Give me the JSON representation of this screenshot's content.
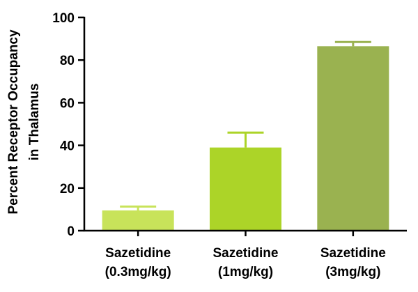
{
  "chart_data": {
    "type": "bar",
    "categories": [
      [
        "Sazetidine",
        "(0.3mg/kg)"
      ],
      [
        "Sazetidine",
        "(1mg/kg)"
      ],
      [
        "Sazetidine",
        "(3mg/kg)"
      ]
    ],
    "values": [
      9.5,
      39,
      86.5
    ],
    "errors": [
      1.8,
      7,
      2
    ],
    "bar_colors": [
      "#c8e35a",
      "#acd428",
      "#9ab250"
    ],
    "ylabel": [
      "Percent Receptor Occupancy",
      "in Thalamus"
    ],
    "xlabel": "",
    "title": "",
    "ylim": [
      0,
      100
    ],
    "yticks": [
      0,
      20,
      40,
      60,
      80,
      100
    ],
    "grid": false,
    "legend": "none"
  }
}
